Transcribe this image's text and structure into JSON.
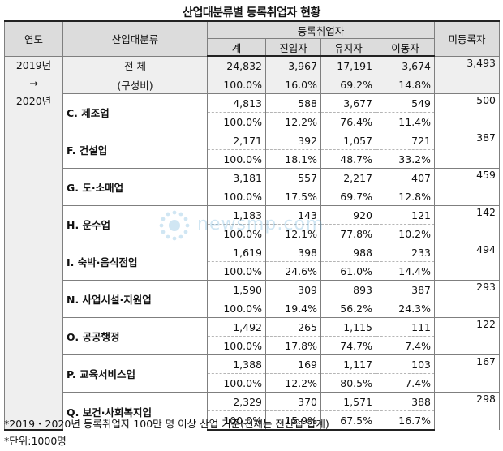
{
  "title": "산업대분류별 등록취업자 현황",
  "header": {
    "year_col": "연도",
    "industry_col": "산업대분류",
    "group_label": "등록취업자",
    "sub_cols": [
      "계",
      "진입자",
      "유지자",
      "이동자"
    ],
    "unregistered_col": "미등록자"
  },
  "year_label": {
    "from": "2019년",
    "arrow": "→",
    "to": "2020년"
  },
  "rows": [
    {
      "name": "전 체",
      "share_label": "(구성비)",
      "total": "24,832",
      "entry": "3,967",
      "stay": "17,191",
      "move": "3,674",
      "total_pct": "100.0%",
      "entry_pct": "16.0%",
      "stay_pct": "69.2%",
      "move_pct": "14.8%",
      "unregistered": "3,493"
    },
    {
      "name": "C. 제조업",
      "total": "4,813",
      "entry": "588",
      "stay": "3,677",
      "move": "549",
      "total_pct": "100.0%",
      "entry_pct": "12.2%",
      "stay_pct": "76.4%",
      "move_pct": "11.4%",
      "unregistered": "500"
    },
    {
      "name": "F. 건설업",
      "total": "2,171",
      "entry": "392",
      "stay": "1,057",
      "move": "721",
      "total_pct": "100.0%",
      "entry_pct": "18.1%",
      "stay_pct": "48.7%",
      "move_pct": "33.2%",
      "unregistered": "387"
    },
    {
      "name": "G. 도·소매업",
      "total": "3,181",
      "entry": "557",
      "stay": "2,217",
      "move": "407",
      "total_pct": "100.0%",
      "entry_pct": "17.5%",
      "stay_pct": "69.7%",
      "move_pct": "12.8%",
      "unregistered": "459"
    },
    {
      "name": "H. 운수업",
      "total": "1,183",
      "entry": "143",
      "stay": "920",
      "move": "121",
      "total_pct": "100.0%",
      "entry_pct": "12.1%",
      "stay_pct": "77.8%",
      "move_pct": "10.2%",
      "unregistered": "142"
    },
    {
      "name": "I. 숙박·음식점업",
      "total": "1,619",
      "entry": "398",
      "stay": "988",
      "move": "233",
      "total_pct": "100.0%",
      "entry_pct": "24.6%",
      "stay_pct": "61.0%",
      "move_pct": "14.4%",
      "unregistered": "494"
    },
    {
      "name": "N. 사업시설·지원업",
      "total": "1,590",
      "entry": "309",
      "stay": "893",
      "move": "387",
      "total_pct": "100.0%",
      "entry_pct": "19.4%",
      "stay_pct": "56.2%",
      "move_pct": "24.3%",
      "unregistered": "293"
    },
    {
      "name": "O. 공공행정",
      "total": "1,492",
      "entry": "265",
      "stay": "1,115",
      "move": "111",
      "total_pct": "100.0%",
      "entry_pct": "17.8%",
      "stay_pct": "74.7%",
      "move_pct": "7.4%",
      "unregistered": "122"
    },
    {
      "name": "P. 교육서비스업",
      "total": "1,388",
      "entry": "169",
      "stay": "1,117",
      "move": "103",
      "total_pct": "100.0%",
      "entry_pct": "12.2%",
      "stay_pct": "80.5%",
      "move_pct": "7.4%",
      "unregistered": "167"
    },
    {
      "name": "Q. 보건·사회복지업",
      "total": "2,329",
      "entry": "370",
      "stay": "1,571",
      "move": "388",
      "total_pct": "100.0%",
      "entry_pct": "15.9%",
      "stay_pct": "67.5%",
      "move_pct": "16.7%",
      "unregistered": "298"
    }
  ],
  "notes": [
    "*2019・2020년 등록취업자 100만 명 이상 산업 기준(전체는 전산업 합계)",
    "*단위:1000명"
  ],
  "watermark_text": "newsmp.com"
}
